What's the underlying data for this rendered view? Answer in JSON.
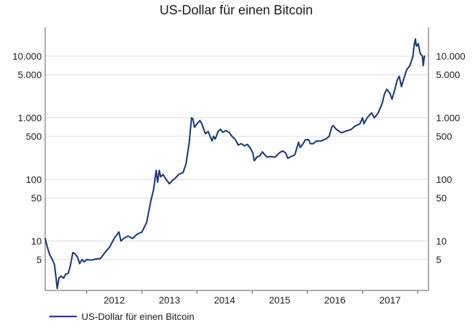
{
  "chart_data": {
    "type": "line",
    "title": "US-Dollar für einen Bitcoin",
    "xlabel": "",
    "ylabel": "",
    "y_scale": "log",
    "ylim": [
      1.5,
      30000
    ],
    "xlim": [
      "2011-04-01",
      "2017-12-31"
    ],
    "grid": true,
    "legend_position": "bottom-left",
    "y_ticks": [
      {
        "value": 10000,
        "label": "10.000"
      },
      {
        "value": 5000,
        "label": "5.000"
      },
      {
        "value": 1000,
        "label": "1.000"
      },
      {
        "value": 500,
        "label": "500"
      },
      {
        "value": 100,
        "label": "100"
      },
      {
        "value": 50,
        "label": "50"
      },
      {
        "value": 10,
        "label": "10"
      },
      {
        "value": 5,
        "label": "5"
      }
    ],
    "x_ticks": [
      "2012",
      "2013",
      "2014",
      "2015",
      "2016",
      "2017"
    ],
    "series": [
      {
        "name": "US-Dollar für einen Bitcoin",
        "color": "#1f3a7a",
        "points": [
          [
            "2011-04-01",
            11
          ],
          [
            "2011-04-15",
            8
          ],
          [
            "2011-05-01",
            6
          ],
          [
            "2011-05-15",
            5.2
          ],
          [
            "2011-06-01",
            4.2
          ],
          [
            "2011-06-10",
            2.8
          ],
          [
            "2011-06-20",
            1.7
          ],
          [
            "2011-07-01",
            2.5
          ],
          [
            "2011-07-15",
            2.7
          ],
          [
            "2011-08-01",
            2.5
          ],
          [
            "2011-08-15",
            2.9
          ],
          [
            "2011-09-01",
            3.0
          ],
          [
            "2011-09-15",
            4.0
          ],
          [
            "2011-10-01",
            6.5
          ],
          [
            "2011-10-15",
            6.2
          ],
          [
            "2011-11-01",
            5.5
          ],
          [
            "2011-11-15",
            4.3
          ],
          [
            "2011-12-01",
            5.0
          ],
          [
            "2011-12-15",
            4.6
          ],
          [
            "2012-01-01",
            5.0
          ],
          [
            "2012-02-01",
            4.9
          ],
          [
            "2012-03-01",
            5.1
          ],
          [
            "2012-04-01",
            5.2
          ],
          [
            "2012-05-01",
            6.5
          ],
          [
            "2012-06-01",
            8.0
          ],
          [
            "2012-07-01",
            11
          ],
          [
            "2012-08-01",
            14
          ],
          [
            "2012-08-15",
            10
          ],
          [
            "2012-09-01",
            11
          ],
          [
            "2012-10-01",
            12
          ],
          [
            "2012-11-01",
            11
          ],
          [
            "2012-12-01",
            13
          ],
          [
            "2013-01-01",
            14
          ],
          [
            "2013-02-01",
            20
          ],
          [
            "2013-03-01",
            45
          ],
          [
            "2013-03-20",
            70
          ],
          [
            "2013-04-05",
            140
          ],
          [
            "2013-04-15",
            90
          ],
          [
            "2013-04-25",
            140
          ],
          [
            "2013-05-05",
            110
          ],
          [
            "2013-05-20",
            120
          ],
          [
            "2013-06-10",
            100
          ],
          [
            "2013-07-01",
            85
          ],
          [
            "2013-07-20",
            95
          ],
          [
            "2013-08-10",
            105
          ],
          [
            "2013-09-01",
            120
          ],
          [
            "2013-10-01",
            130
          ],
          [
            "2013-10-20",
            180
          ],
          [
            "2013-11-10",
            400
          ],
          [
            "2013-11-25",
            1000
          ],
          [
            "2013-12-05",
            950
          ],
          [
            "2013-12-15",
            700
          ],
          [
            "2014-01-01",
            800
          ],
          [
            "2014-01-20",
            900
          ],
          [
            "2014-02-01",
            800
          ],
          [
            "2014-02-25",
            550
          ],
          [
            "2014-03-15",
            600
          ],
          [
            "2014-04-10",
            420
          ],
          [
            "2014-04-20",
            500
          ],
          [
            "2014-05-01",
            450
          ],
          [
            "2014-05-20",
            600
          ],
          [
            "2014-06-05",
            650
          ],
          [
            "2014-06-20",
            580
          ],
          [
            "2014-07-10",
            620
          ],
          [
            "2014-08-01",
            580
          ],
          [
            "2014-08-20",
            500
          ],
          [
            "2014-09-10",
            450
          ],
          [
            "2014-10-01",
            360
          ],
          [
            "2014-10-20",
            380
          ],
          [
            "2014-11-10",
            350
          ],
          [
            "2014-12-01",
            370
          ],
          [
            "2014-12-20",
            320
          ],
          [
            "2015-01-05",
            270
          ],
          [
            "2015-01-15",
            200
          ],
          [
            "2015-02-01",
            230
          ],
          [
            "2015-02-20",
            240
          ],
          [
            "2015-03-10",
            280
          ],
          [
            "2015-03-25",
            250
          ],
          [
            "2015-04-10",
            230
          ],
          [
            "2015-05-01",
            235
          ],
          [
            "2015-06-01",
            230
          ],
          [
            "2015-07-01",
            270
          ],
          [
            "2015-07-20",
            290
          ],
          [
            "2015-08-10",
            270
          ],
          [
            "2015-08-25",
            220
          ],
          [
            "2015-09-15",
            235
          ],
          [
            "2015-10-10",
            250
          ],
          [
            "2015-11-04",
            400
          ],
          [
            "2015-11-15",
            330
          ],
          [
            "2015-12-01",
            370
          ],
          [
            "2015-12-20",
            440
          ],
          [
            "2016-01-10",
            440
          ],
          [
            "2016-01-20",
            380
          ],
          [
            "2016-02-10",
            380
          ],
          [
            "2016-03-01",
            420
          ],
          [
            "2016-04-01",
            420
          ],
          [
            "2016-05-01",
            450
          ],
          [
            "2016-05-25",
            500
          ],
          [
            "2016-06-10",
            700
          ],
          [
            "2016-06-20",
            750
          ],
          [
            "2016-07-10",
            650
          ],
          [
            "2016-08-01",
            600
          ],
          [
            "2016-08-15",
            570
          ],
          [
            "2016-09-15",
            610
          ],
          [
            "2016-10-15",
            640
          ],
          [
            "2016-11-15",
            740
          ],
          [
            "2016-12-15",
            800
          ],
          [
            "2017-01-01",
            1000
          ],
          [
            "2017-01-10",
            800
          ],
          [
            "2017-02-01",
            1000
          ],
          [
            "2017-03-01",
            1200
          ],
          [
            "2017-03-20",
            1000
          ],
          [
            "2017-04-15",
            1200
          ],
          [
            "2017-05-10",
            1700
          ],
          [
            "2017-05-25",
            2400
          ],
          [
            "2017-06-10",
            2900
          ],
          [
            "2017-07-01",
            2500
          ],
          [
            "2017-07-15",
            2000
          ],
          [
            "2017-08-01",
            2800
          ],
          [
            "2017-08-20",
            4200
          ],
          [
            "2017-09-01",
            4700
          ],
          [
            "2017-09-15",
            3200
          ],
          [
            "2017-10-01",
            4300
          ],
          [
            "2017-10-20",
            6000
          ],
          [
            "2017-11-10",
            7000
          ],
          [
            "2017-11-30",
            10000
          ],
          [
            "2017-12-10",
            16000
          ],
          [
            "2017-12-17",
            19000
          ],
          [
            "2017-12-22",
            15000
          ],
          [
            "2017-12-26",
            14500
          ],
          [
            "2018-01-05",
            16000
          ],
          [
            "2018-01-17",
            11000
          ],
          [
            "2018-02-01",
            10000
          ],
          [
            "2018-02-06",
            7000
          ],
          [
            "2018-02-15",
            10000
          ]
        ]
      }
    ]
  }
}
